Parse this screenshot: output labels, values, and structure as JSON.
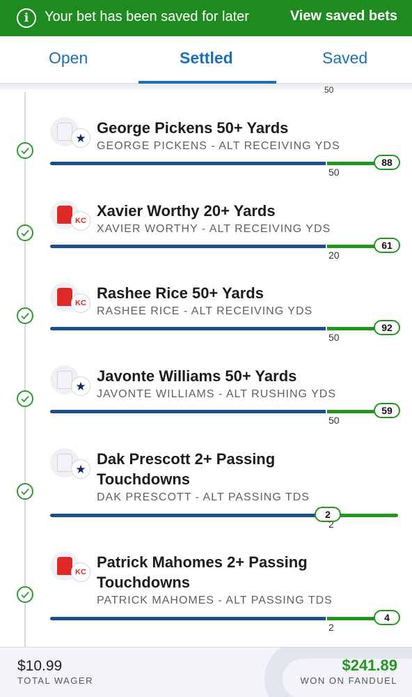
{
  "banner": {
    "message": "Your bet has been saved for later",
    "link": "View saved bets",
    "icon": "info-icon"
  },
  "tabs": [
    {
      "label": "Open",
      "active": false
    },
    {
      "label": "Settled",
      "active": true
    },
    {
      "label": "Saved",
      "active": false
    }
  ],
  "top_cut_label": "50",
  "legs": [
    {
      "title": "George Pickens 50+ Yards",
      "subtitle": "GEORGE PICKENS - ALT RECEIVING YDS",
      "target": "50",
      "actual": "88",
      "team": "dallas-cowboys"
    },
    {
      "title": "Xavier Worthy 20+ Yards",
      "subtitle": "XAVIER WORTHY - ALT RECEIVING YDS",
      "target": "20",
      "actual": "61",
      "team": "kansas-city-chiefs"
    },
    {
      "title": "Rashee Rice 50+ Yards",
      "subtitle": "RASHEE RICE - ALT RECEIVING YDS",
      "target": "50",
      "actual": "92",
      "team": "kansas-city-chiefs"
    },
    {
      "title": "Javonte Williams 50+ Yards",
      "subtitle": "JAVONTE WILLIAMS - ALT RUSHING YDS",
      "target": "50",
      "actual": "59",
      "team": "dallas-cowboys"
    },
    {
      "title_line1": "Dak Prescott 2+ Passing",
      "title_line2": "Touchdowns",
      "subtitle": "DAK PRESCOTT - ALT PASSING TDS",
      "target": "2",
      "actual": "2",
      "team": "dallas-cowboys"
    },
    {
      "title_line1": "Patrick Mahomes 2+ Passing",
      "title_line2": "Touchdowns",
      "subtitle": "PATRICK MAHOMES - ALT PASSING TDS",
      "target": "2",
      "actual": "4",
      "team": "kansas-city-chiefs"
    }
  ],
  "footer": {
    "wager": "$10.99",
    "wager_label": "TOTAL WAGER",
    "won": "$241.89",
    "won_label": "WON ON FANDUEL"
  },
  "colors": {
    "banner": "#1f8a1f",
    "accent": "#1a6fb5",
    "progress_blue": "#1c4e8a",
    "progress_green": "#22961f"
  }
}
